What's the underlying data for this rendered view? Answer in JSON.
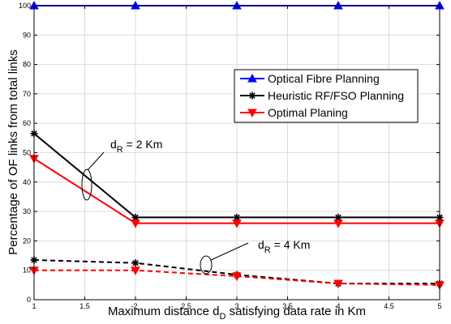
{
  "chart_data": {
    "type": "line",
    "title": "",
    "xlabel": "Maximum distance d_D satisfying data rate in Km",
    "xlabel_parts": {
      "pre": "Maximum distance d",
      "sub": "D",
      "post": " satisfying data rate in Km"
    },
    "ylabel": "Percentage of OF links from total links",
    "xlim": [
      1,
      5
    ],
    "ylim": [
      0,
      100
    ],
    "xticks": [
      "1",
      "1.5",
      "2",
      "2.5",
      "3",
      "3.5",
      "4",
      "4.5",
      "5"
    ],
    "yticks": [
      "0",
      "10",
      "20",
      "30",
      "40",
      "50",
      "60",
      "70",
      "80",
      "90",
      "100"
    ],
    "grid": true,
    "legend_position": "right",
    "legend": [
      {
        "name": "Optical Fibre Planning",
        "color": "#0000ff",
        "marker": "triangle-up"
      },
      {
        "name": "Heuristic RF/FSO Planning",
        "color": "#000000",
        "marker": "asterisk"
      },
      {
        "name": "Optimal Planing",
        "color": "#ff0000",
        "marker": "triangle-down"
      }
    ],
    "series": [
      {
        "legend_index": 0,
        "line": "solid",
        "x": [
          1,
          2,
          3,
          4,
          5
        ],
        "values": [
          100,
          100,
          100,
          100,
          100
        ]
      },
      {
        "legend_index": 1,
        "line": "solid",
        "x": [
          1,
          2,
          3,
          4,
          5
        ],
        "values": [
          56.5,
          28,
          28,
          28,
          28
        ]
      },
      {
        "legend_index": 2,
        "line": "solid",
        "x": [
          1,
          2,
          3,
          4,
          5
        ],
        "values": [
          48,
          26,
          26,
          26,
          26
        ]
      },
      {
        "legend_index": 1,
        "line": "dashed",
        "x": [
          1,
          2,
          3,
          4,
          5
        ],
        "values": [
          13.5,
          12.5,
          8.5,
          5.5,
          5.5
        ]
      },
      {
        "legend_index": 2,
        "line": "dashed",
        "x": [
          1,
          2,
          3,
          4,
          5
        ],
        "values": [
          10,
          10,
          8,
          5.5,
          5
        ]
      }
    ],
    "annotations": [
      {
        "pre": "d",
        "sub": "R",
        "post": " = 2 Km",
        "text": "d_R = 2 Km"
      },
      {
        "pre": "d",
        "sub": "R",
        "post": " = 4 Km",
        "text": "d_R = 4 Km"
      }
    ]
  }
}
